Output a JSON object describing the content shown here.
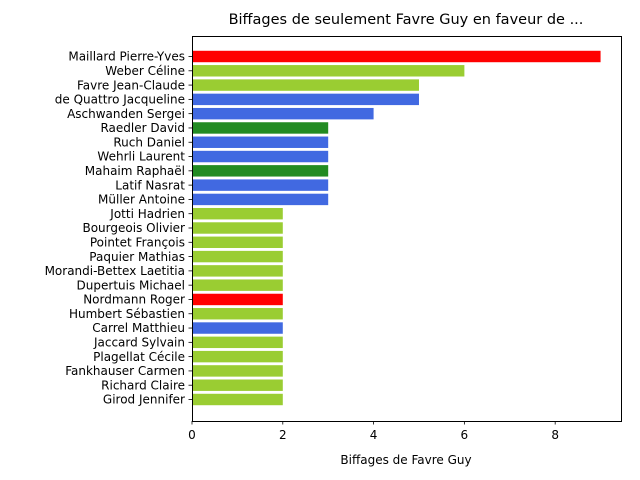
{
  "chart_data": {
    "type": "bar",
    "orientation": "horizontal",
    "title": "Biffages de seulement Favre Guy en faveur de ...",
    "xlabel": "Biffages de Favre Guy",
    "ylabel": "",
    "xlim": [
      0,
      9.45
    ],
    "xticks": [
      0,
      2,
      4,
      6,
      8
    ],
    "grid": false,
    "categories": [
      "Maillard Pierre-Yves",
      "Weber Céline",
      "Favre Jean-Claude",
      "de Quattro Jacqueline",
      "Aschwanden Sergei",
      "Raedler David",
      "Ruch Daniel",
      "Wehrli Laurent",
      "Mahaim Raphaël",
      "Latif Nasrat",
      "Müller Antoine",
      "Jotti Hadrien",
      "Bourgeois Olivier",
      "Pointet François",
      "Paquier Mathias",
      "Morandi-Bettex Laetitia",
      "Dupertuis Michael",
      "Nordmann Roger",
      "Humbert Sébastien",
      "Carrel Matthieu",
      "Jaccard Sylvain",
      "Plagellat Cécile",
      "Fankhauser Carmen",
      "Richard Claire",
      "Girod Jennifer"
    ],
    "values": [
      9,
      6,
      5,
      5,
      4,
      3,
      3,
      3,
      3,
      3,
      3,
      2,
      2,
      2,
      2,
      2,
      2,
      2,
      2,
      2,
      2,
      2,
      2,
      2,
      2
    ],
    "colors": [
      "#ff0000",
      "#9acd32",
      "#9acd32",
      "#4169e1",
      "#4169e1",
      "#228b22",
      "#4169e1",
      "#4169e1",
      "#228b22",
      "#4169e1",
      "#4169e1",
      "#9acd32",
      "#9acd32",
      "#9acd32",
      "#9acd32",
      "#9acd32",
      "#9acd32",
      "#ff0000",
      "#9acd32",
      "#4169e1",
      "#9acd32",
      "#9acd32",
      "#9acd32",
      "#9acd32",
      "#9acd32"
    ]
  }
}
